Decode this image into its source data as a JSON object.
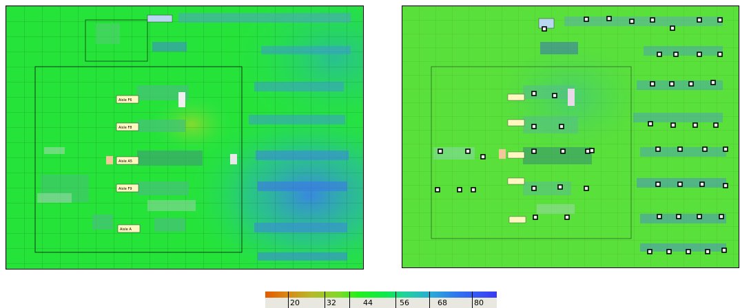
{
  "maps": {
    "left": {
      "aisle_labels": [
        "Aisle F6",
        "Aisle F8",
        "Aisle A5",
        "Aisle F9",
        "Aisle A"
      ]
    },
    "right": {}
  },
  "legend": {
    "colors": [
      "#e35a00",
      "#b6b92a",
      "#22f01a",
      "#20d39a",
      "#2aa9d8",
      "#3a3af5"
    ],
    "ticks": [
      "20",
      "32",
      "44",
      "56",
      "68",
      "80"
    ]
  }
}
